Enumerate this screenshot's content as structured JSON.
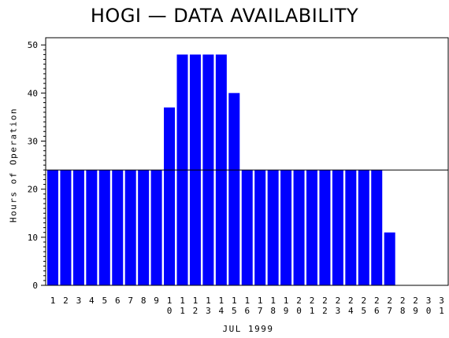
{
  "chart_data": {
    "type": "bar",
    "title": "HOGI — DATA AVAILABILITY",
    "xlabel": "JUL 1999",
    "ylabel": "Hours of Operation",
    "categories": [
      "1",
      "2",
      "3",
      "4",
      "5",
      "6",
      "7",
      "8",
      "9",
      "10",
      "11",
      "12",
      "13",
      "14",
      "15",
      "16",
      "17",
      "18",
      "19",
      "20",
      "21",
      "22",
      "23",
      "24",
      "25",
      "26",
      "27",
      "28",
      "29",
      "30",
      "31"
    ],
    "tick_labels": [
      [
        "1"
      ],
      [
        "2"
      ],
      [
        "3"
      ],
      [
        "4"
      ],
      [
        "5"
      ],
      [
        "6"
      ],
      [
        "7"
      ],
      [
        "8"
      ],
      [
        "9"
      ],
      [
        "1",
        "0"
      ],
      [
        "1",
        "1"
      ],
      [
        "1",
        "2"
      ],
      [
        "1",
        "3"
      ],
      [
        "1",
        "4"
      ],
      [
        "1",
        "5"
      ],
      [
        "1",
        "6"
      ],
      [
        "1",
        "7"
      ],
      [
        "1",
        "8"
      ],
      [
        "1",
        "9"
      ],
      [
        "2",
        "0"
      ],
      [
        "2",
        "1"
      ],
      [
        "2",
        "2"
      ],
      [
        "2",
        "3"
      ],
      [
        "2",
        "4"
      ],
      [
        "2",
        "5"
      ],
      [
        "2",
        "6"
      ],
      [
        "2",
        "7"
      ],
      [
        "2",
        "8"
      ],
      [
        "2",
        "9"
      ],
      [
        "3",
        "0"
      ],
      [
        "3",
        "1"
      ]
    ],
    "values": [
      24,
      24,
      24,
      24,
      24,
      24,
      24,
      24,
      24,
      37,
      48,
      48,
      48,
      48,
      40,
      24,
      24,
      24,
      24,
      24,
      24,
      24,
      24,
      24,
      24,
      24,
      11,
      0,
      0,
      0,
      0
    ],
    "reference_line": 24,
    "ylim": [
      0,
      50
    ],
    "yticks": [
      0,
      10,
      20,
      30,
      40,
      50
    ],
    "bar_color": "#0000ff",
    "grid": false,
    "legend": "none"
  }
}
